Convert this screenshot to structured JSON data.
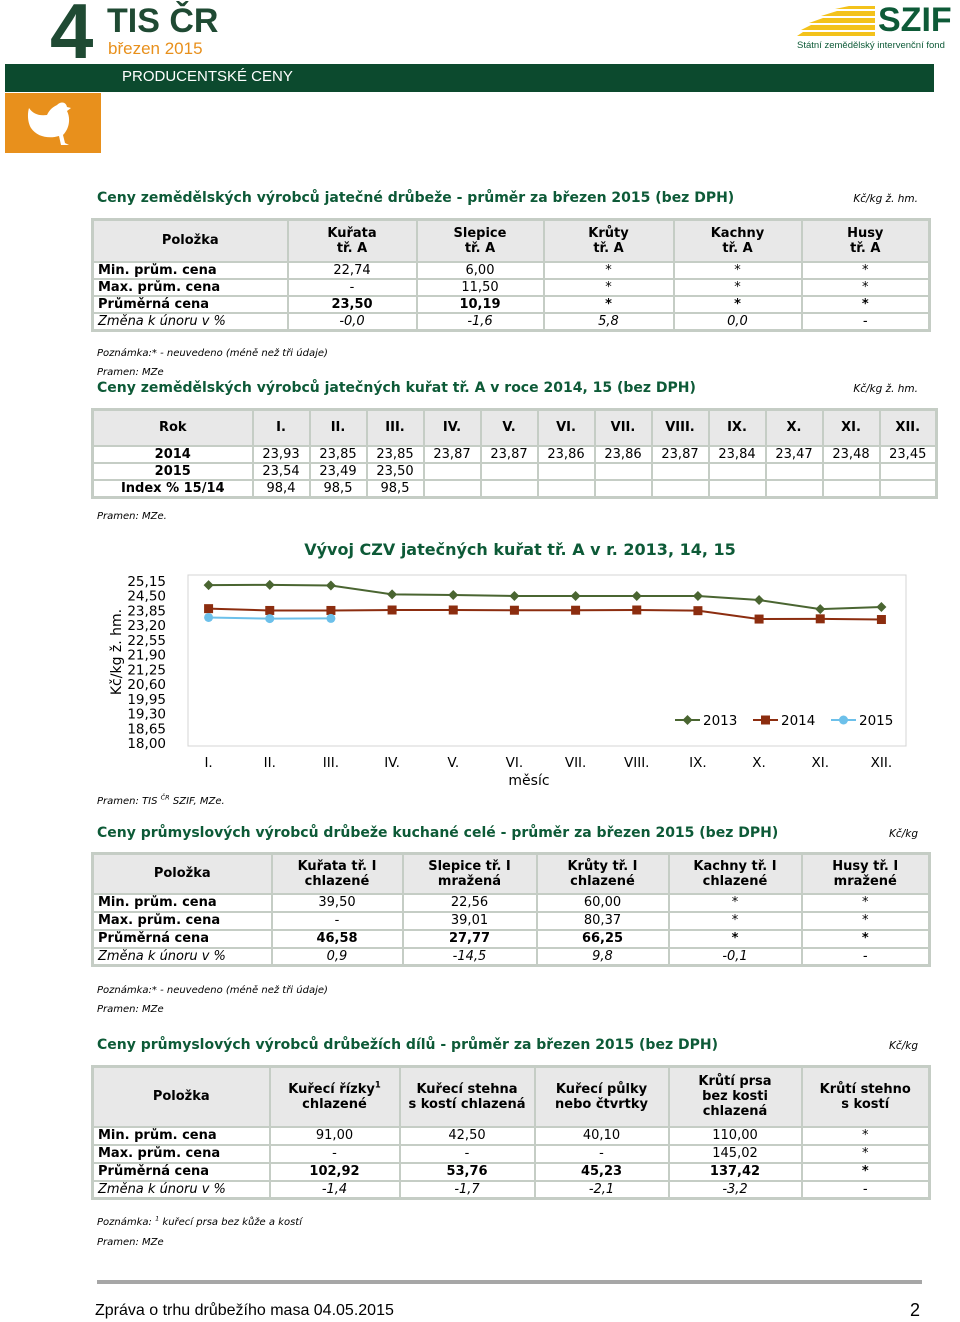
{
  "header": {
    "number": "4",
    "title": "TIS ČR",
    "date": "březen 2015",
    "section": "PRODUCENTSKÉ CENY",
    "org": "SZIF",
    "org_full": "Státní zemědělský intervenční fond"
  },
  "table1": {
    "title": "Ceny zemědělských výrobců jatečné drůbeže - průměr za březen 2015 (bez DPH)",
    "unit": "Kč/kg ž. hm.",
    "header": [
      "Položka",
      "Kuřata\ntř. A",
      "Slepice\ntř. A",
      "Krůty\ntř. A",
      "Kachny\ntř. A",
      "Husy\ntř. A"
    ],
    "rows": [
      [
        "Min. prům. cena",
        "22,74",
        "6,00",
        "*",
        "*",
        "*"
      ],
      [
        "Max. prům. cena",
        "-",
        "11,50",
        "*",
        "*",
        "*"
      ],
      [
        "Průměrná  cena",
        "23,50",
        "10,19",
        "*",
        "*",
        "*"
      ],
      [
        "Změna k únoru v %",
        "-0,0",
        "-1,6",
        "5,8",
        "0,0",
        "-"
      ]
    ],
    "note": "Poznámka:* - neuvedeno (méně než tři údaje)",
    "source": "Pramen: MZe"
  },
  "table2": {
    "title": "Ceny zemědělských výrobců jatečných kuřat tř. A v roce 2014, 15 (bez DPH)",
    "unit": "Kč/kg ž. hm.",
    "header": [
      "Rok",
      "I.",
      "II.",
      "III.",
      "IV.",
      "V.",
      "VI.",
      "VII.",
      "VIII.",
      "IX.",
      "X.",
      "XI.",
      "XII."
    ],
    "rows": [
      [
        "2014",
        "23,93",
        "23,85",
        "23,85",
        "23,87",
        "23,87",
        "23,86",
        "23,86",
        "23,87",
        "23,84",
        "23,47",
        "23,48",
        "23,45"
      ],
      [
        "2015",
        "23,54",
        "23,49",
        "23,50"
      ],
      [
        "Index % 15/14",
        "98,4",
        "98,5",
        "98,5"
      ]
    ],
    "source": "Pramen: MZe."
  },
  "chart_data": {
    "type": "line",
    "title": "Vývoj CZV jatečných kuřat tř. A v r. 2013, 14, 15",
    "ylabel": "Kč/kg ž. hm.",
    "xlabel": "měsíc",
    "categories": [
      "I.",
      "II.",
      "III.",
      "IV.",
      "V.",
      "VI.",
      "VII.",
      "VIII.",
      "IX.",
      "X.",
      "XI.",
      "XII."
    ],
    "series": [
      {
        "name": "2013",
        "color": "#4a6531",
        "marker": "diamond",
        "values": [
          24.97,
          24.98,
          24.95,
          24.56,
          24.53,
          24.49,
          24.49,
          24.49,
          24.49,
          24.31,
          23.91,
          24.0
        ]
      },
      {
        "name": "2014",
        "color": "#8c2d0f",
        "marker": "square",
        "values": [
          23.93,
          23.85,
          23.85,
          23.87,
          23.87,
          23.86,
          23.86,
          23.87,
          23.84,
          23.47,
          23.48,
          23.45
        ]
      },
      {
        "name": "2015",
        "color": "#6cc0ea",
        "marker": "circle",
        "values": [
          23.54,
          23.49,
          23.5,
          null,
          null,
          null,
          null,
          null,
          null,
          null,
          null,
          null
        ]
      }
    ],
    "ylim": [
      18,
      25.15
    ],
    "yticks": [
      {
        "value": 18,
        "label": "18,00"
      },
      {
        "value": 18.65,
        "label": "18,65"
      },
      {
        "value": 19.3,
        "label": "19,30"
      },
      {
        "value": 19.95,
        "label": "19,95"
      },
      {
        "value": 20.6,
        "label": "20,60"
      },
      {
        "value": 21.25,
        "label": "21,25"
      },
      {
        "value": 21.9,
        "label": "21,90"
      },
      {
        "value": 22.55,
        "label": "22,55"
      },
      {
        "value": 23.2,
        "label": "23,20"
      },
      {
        "value": 23.85,
        "label": "23,85"
      },
      {
        "value": 24.5,
        "label": "24,50"
      },
      {
        "value": 25.15,
        "label": "25,15"
      }
    ],
    "grid": false,
    "legend": "lower right",
    "source": [
      "Pramen: TIS ",
      {
        "sup": "ČR"
      },
      " SZIF, MZe."
    ]
  },
  "table3": {
    "title": "Ceny průmyslových výrobců drůbeže kuchané celé - průměr za březen 2015 (bez DPH)",
    "unit": "Kč/kg",
    "header": [
      "Položka",
      "Kuřata tř. I\nchlazené",
      "Slepice tř. I\nmražená",
      "Krůty tř. I\nchlazené",
      "Kachny tř. I\nchlazené",
      "Husy tř. I\nmražené"
    ],
    "rows": [
      [
        "Min. prům. cena",
        "39,50",
        "22,56",
        "60,00",
        "*",
        "*"
      ],
      [
        "Max. prům. cena",
        "-",
        "39,01",
        "80,37",
        "*",
        "*"
      ],
      [
        "Průměrná cena",
        "46,58",
        "27,77",
        "66,25",
        "*",
        "*"
      ],
      [
        "Změna k únoru v %",
        "0,9",
        "-14,5",
        "9,8",
        "-0,1",
        "-"
      ]
    ],
    "note": "Poznámka:* - neuvedeno (méně než tři údaje)",
    "source": "Pramen: MZe"
  },
  "table4": {
    "title": "Ceny průmyslových výrobců drůbežích dílů - průměr za březen 2015 (bez DPH)",
    "unit": "Kč/kg",
    "header": [
      "Položka",
      [
        "Kuřecí řízky",
        {
          "sup": "1"
        },
        "\nchlazené"
      ],
      "Kuřecí stehna\ns kostí chlazená",
      "Kuřecí půlky\nnebo čtvrtky",
      "Krůtí prsa\nbez kosti\nchlazená",
      "Krůtí stehno\ns kostí"
    ],
    "rows": [
      [
        "Min. prům. cena",
        "91,00",
        "42,50",
        "40,10",
        "110,00",
        "*"
      ],
      [
        "Max. prům. cena",
        "-",
        "-",
        "-",
        "145,02",
        "*"
      ],
      [
        "Průměrná cena",
        "102,92",
        "53,76",
        "45,23",
        "137,42",
        "*"
      ],
      [
        "Změna k únoru v %",
        "-1,4",
        "-1,7",
        "-2,1",
        "-3,2",
        "-"
      ]
    ],
    "note": [
      "Poznámka: ",
      {
        "sup": "1"
      },
      " kuřecí prsa bez kůže a kostí"
    ],
    "source": "Pramen: MZe"
  },
  "footer": {
    "text": "Zpráva o trhu drůbežího masa 04.05.2015",
    "page": "2"
  }
}
